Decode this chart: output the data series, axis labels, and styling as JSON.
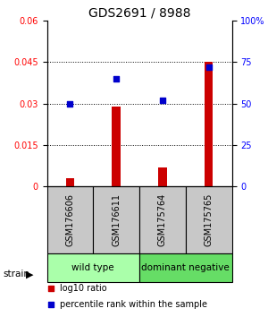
{
  "title": "GDS2691 / 8988",
  "samples": [
    "GSM176606",
    "GSM176611",
    "GSM175764",
    "GSM175765"
  ],
  "log10_ratio": [
    0.003,
    0.029,
    0.007,
    0.045
  ],
  "percentile_rank": [
    50,
    65,
    52,
    72
  ],
  "ylim_left": [
    0,
    0.06
  ],
  "ylim_right": [
    0,
    100
  ],
  "yticks_left": [
    0,
    0.015,
    0.03,
    0.045,
    0.06
  ],
  "yticks_right": [
    0,
    25,
    50,
    75,
    100
  ],
  "ytick_labels_left": [
    "0",
    "0.015",
    "0.03",
    "0.045",
    "0.06"
  ],
  "ytick_labels_right": [
    "0",
    "25",
    "50",
    "75",
    "100%"
  ],
  "hlines": [
    0.015,
    0.03,
    0.045
  ],
  "bar_color": "#cc0000",
  "dot_color": "#0000cc",
  "groups": [
    {
      "label": "wild type",
      "indices": [
        0,
        1
      ],
      "color": "#aaffaa"
    },
    {
      "label": "dominant negative",
      "indices": [
        2,
        3
      ],
      "color": "#66dd66"
    }
  ],
  "strain_label": "strain",
  "legend_bar_label": "log10 ratio",
  "legend_dot_label": "percentile rank within the sample",
  "title_fontsize": 10,
  "tick_fontsize": 7,
  "sample_label_fontsize": 7,
  "group_label_fontsize": 7.5,
  "bar_width": 0.18,
  "dot_size": 20,
  "bg_color": "#c8c8c8"
}
